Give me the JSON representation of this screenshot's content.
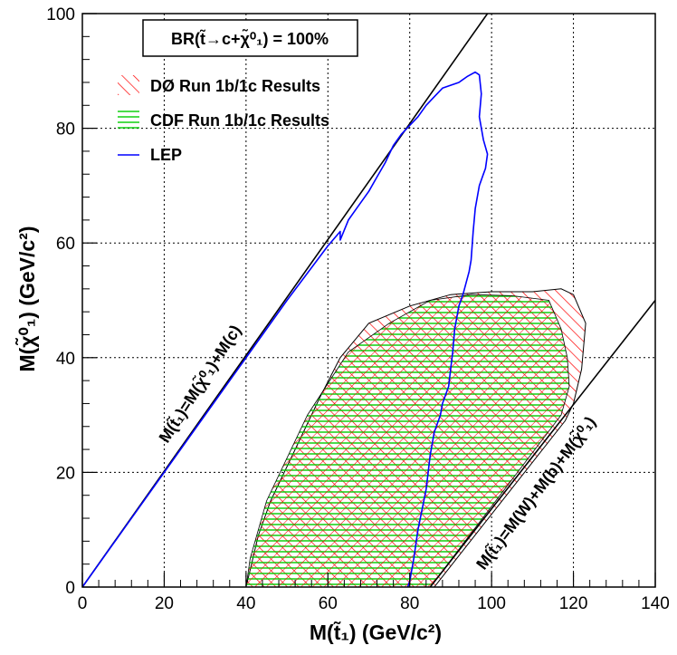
{
  "chart_data": {
    "type": "area",
    "title": "BR(t̃→c+χ̃⁰₁) = 100%",
    "xlabel": "M(t̃₁) (GeV/c²)",
    "ylabel": "M(χ̃⁰₁) (GeV/c²)",
    "xlim": [
      0,
      140
    ],
    "ylim": [
      0,
      100
    ],
    "xticks": [
      "0",
      "20",
      "40",
      "60",
      "80",
      "100",
      "120",
      "140"
    ],
    "yticks": [
      "0",
      "20",
      "40",
      "60",
      "80",
      "100"
    ],
    "grid": true,
    "legend_position": "top-left",
    "series": [
      {
        "name": "DØ Run 1b/1c Results",
        "kind": "hatched-region",
        "color": "#ff0000",
        "points": [
          [
            40,
            0
          ],
          [
            43,
            9
          ],
          [
            46,
            15
          ],
          [
            52,
            24
          ],
          [
            58,
            33
          ],
          [
            63,
            40
          ],
          [
            70,
            46
          ],
          [
            80,
            49
          ],
          [
            90,
            51
          ],
          [
            100,
            51.5
          ],
          [
            110,
            51.5
          ],
          [
            117,
            52
          ],
          [
            120,
            51
          ],
          [
            123,
            46
          ],
          [
            122,
            38
          ],
          [
            120,
            32
          ],
          [
            118,
            29
          ],
          [
            86,
            0
          ]
        ]
      },
      {
        "name": "CDF Run 1b/1c Results",
        "kind": "hatched-region",
        "color": "#00cc00",
        "points": [
          [
            40,
            0
          ],
          [
            41,
            5
          ],
          [
            45,
            15
          ],
          [
            55,
            30
          ],
          [
            65,
            41
          ],
          [
            75,
            46
          ],
          [
            85,
            50
          ],
          [
            95,
            51
          ],
          [
            105,
            50.8
          ],
          [
            114,
            50
          ],
          [
            117,
            45
          ],
          [
            118.5,
            40
          ],
          [
            119,
            35
          ],
          [
            117,
            30
          ],
          [
            85,
            0
          ]
        ]
      },
      {
        "name": "LEP",
        "kind": "line",
        "color": "#0000ff",
        "points": [
          [
            0,
            0
          ],
          [
            10,
            10
          ],
          [
            20,
            20
          ],
          [
            30,
            30
          ],
          [
            40,
            40
          ],
          [
            50,
            50
          ],
          [
            60,
            59.5
          ],
          [
            63,
            62
          ],
          [
            63,
            60.5
          ],
          [
            65,
            64
          ],
          [
            67,
            66
          ],
          [
            70,
            69
          ],
          [
            72,
            71.5
          ],
          [
            74,
            74
          ],
          [
            76,
            77
          ],
          [
            78,
            79
          ],
          [
            80,
            80.5
          ],
          [
            82,
            82
          ],
          [
            84,
            84
          ],
          [
            86,
            85.5
          ],
          [
            88,
            87
          ],
          [
            90,
            87.5
          ],
          [
            92,
            88
          ],
          [
            94,
            89
          ],
          [
            96,
            89.8
          ],
          [
            97,
            89.3
          ],
          [
            97.5,
            86
          ],
          [
            97,
            82
          ],
          [
            98,
            78
          ],
          [
            99,
            75.5
          ],
          [
            98.5,
            73
          ],
          [
            98,
            72
          ],
          [
            97,
            70
          ],
          [
            96,
            66
          ],
          [
            95.5,
            62
          ],
          [
            95,
            57
          ],
          [
            94.5,
            55
          ],
          [
            93,
            51
          ],
          [
            92,
            49
          ],
          [
            91,
            45
          ],
          [
            90.5,
            41
          ],
          [
            90,
            38
          ],
          [
            89.5,
            35
          ],
          [
            88,
            32
          ],
          [
            87.5,
            30
          ],
          [
            86,
            27
          ],
          [
            85,
            23
          ],
          [
            84,
            17
          ],
          [
            82,
            10
          ],
          [
            81,
            5
          ],
          [
            80,
            1
          ],
          [
            79.5,
            0
          ]
        ]
      },
      {
        "name": "M(t̃₁)=M(χ̃⁰₁)+M(c)",
        "kind": "line",
        "color": "#000000",
        "points": [
          [
            0,
            0
          ],
          [
            99,
            100
          ]
        ]
      },
      {
        "name": "M(t̃₁)=M(W)+M(b)+M(χ̃⁰₁)",
        "kind": "line",
        "color": "#000000",
        "points": [
          [
            85,
            0
          ],
          [
            140,
            50
          ]
        ]
      }
    ],
    "annotations": [
      "BR(t̃→c+χ̃⁰₁) = 100%",
      "M(t̃₁)=M(χ̃⁰₁)+M(c)",
      "M(t̃₁)=M(W)+M(b)+M(χ̃⁰₁)"
    ]
  },
  "legend": {
    "d0": "DØ Run 1b/1c Results",
    "cdf": "CDF Run 1b/1c Results",
    "lep": "LEP"
  }
}
